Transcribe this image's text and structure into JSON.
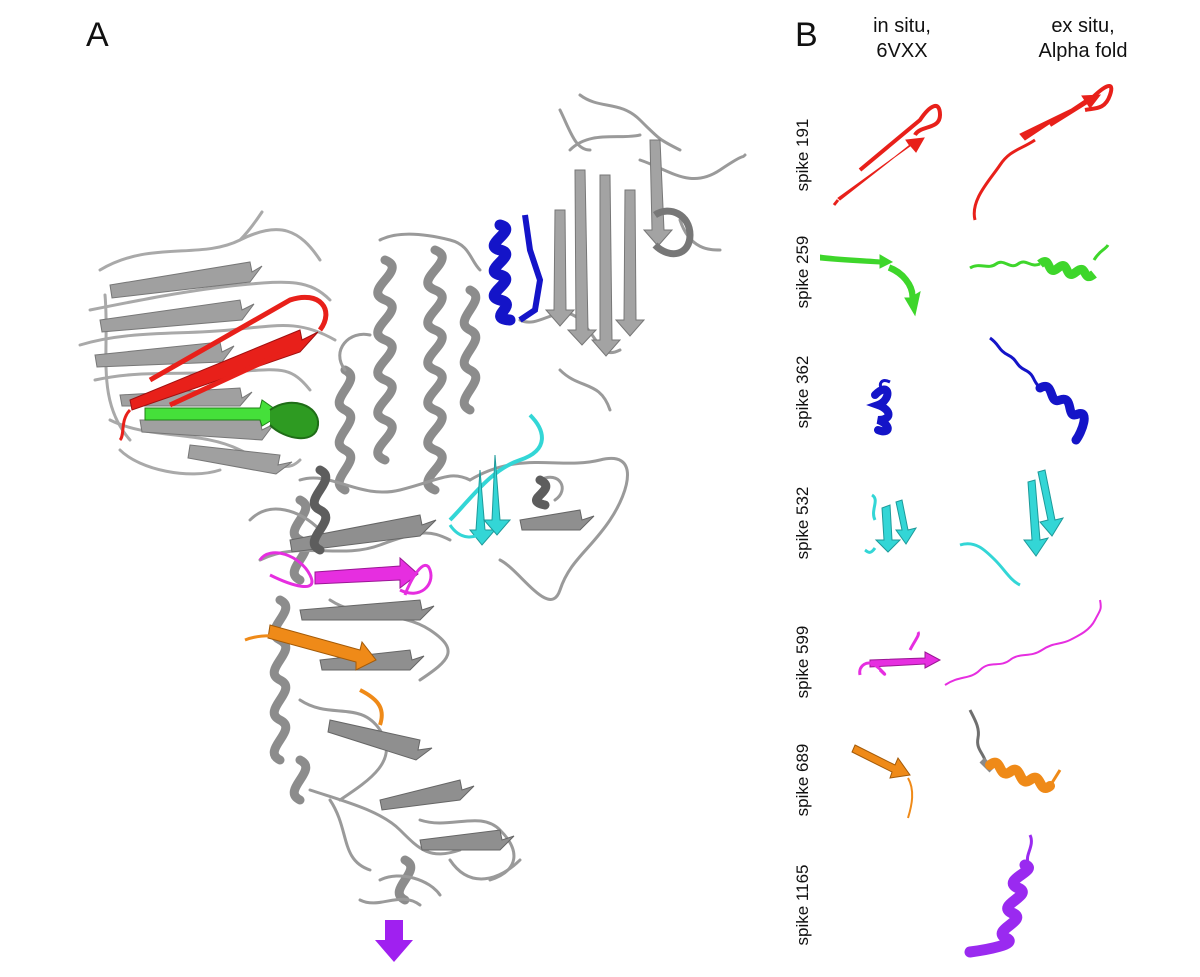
{
  "panels": {
    "a": "A",
    "b": "B"
  },
  "columns": {
    "in_situ": {
      "line1": "in situ,",
      "line2": "6VXX"
    },
    "ex_situ": {
      "line1": "ex situ,",
      "line2": "Alpha fold"
    }
  },
  "rows": [
    {
      "label": "spike 191",
      "color": "#e8201a"
    },
    {
      "label": "spike 259",
      "color": "#3ed62b"
    },
    {
      "label": "spike 362",
      "color": "#1414c8"
    },
    {
      "label": "spike 532",
      "color": "#33d6d6"
    },
    {
      "label": "spike 599",
      "color": "#e62ee0"
    },
    {
      "label": "spike 689",
      "color": "#ef8a18"
    },
    {
      "label": "spike 1165",
      "color": "#9a2af0"
    }
  ],
  "colors": {
    "backbone": "#a9a9a9",
    "backbone_dark": "#6f6f6f",
    "arrow": "#a020f0"
  }
}
